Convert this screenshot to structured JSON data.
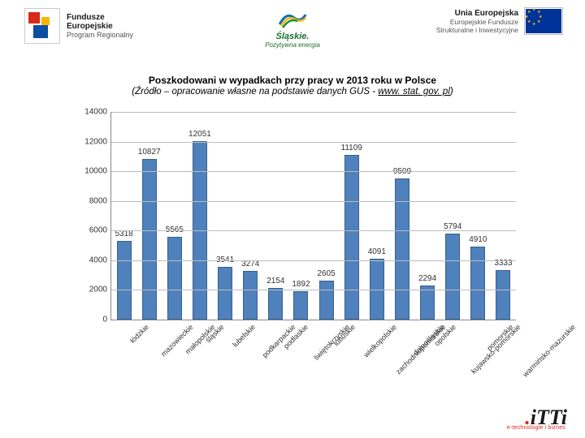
{
  "header": {
    "left_logo_line1": "Fundusze",
    "left_logo_line2": "Europejskie",
    "left_logo_line3": "Program Regionalny",
    "center_logo_line1": "Śląskie.",
    "center_logo_line2": "Pozytywna energia",
    "right_logo_line1": "Unia Europejska",
    "right_logo_line2": "Europejskie Fundusze",
    "right_logo_line3": "Strukturalne i Inwestycyjne"
  },
  "title": {
    "main": "Poszkodowani w wypadkach przy pracy w 2013 roku w Polsce",
    "sub_prefix": "(Źródło – opracowanie własne na podstawie danych GUS - ",
    "sub_link": "www. stat. gov. pl",
    "sub_suffix": ")"
  },
  "chart": {
    "type": "bar",
    "ylim": [
      0,
      14000
    ],
    "ytick_step": 2000,
    "yticks": [
      "0",
      "2000",
      "4000",
      "6000",
      "8000",
      "10000",
      "12000",
      "14000"
    ],
    "bar_color": "#4f81bd",
    "bar_border": "#3a5f8a",
    "grid_color": "#bdbdbd",
    "label_fontsize": 10,
    "xlabel_fontsize": 9,
    "categories": [
      "łódzkie",
      "mazowieckie",
      "małopolskie",
      "śląskie",
      "lubelskie",
      "podkarpackie",
      "podlaskie",
      "świętokrzyskie",
      "lubuskie",
      "wielkopolskie",
      "zachodniopomorskie",
      "dolnośląskie",
      "opolskie",
      "kujawsko-pomorskie",
      "pomorskie",
      "warmińsko-mazurskie"
    ],
    "values": [
      5318,
      10827,
      5565,
      12051,
      3541,
      3274,
      2154,
      1892,
      2605,
      11109,
      4091,
      9509,
      2294,
      5794,
      4910,
      3333
    ]
  },
  "footer": {
    "brand": "iTTi",
    "tag": "e-technologie i biznes"
  }
}
